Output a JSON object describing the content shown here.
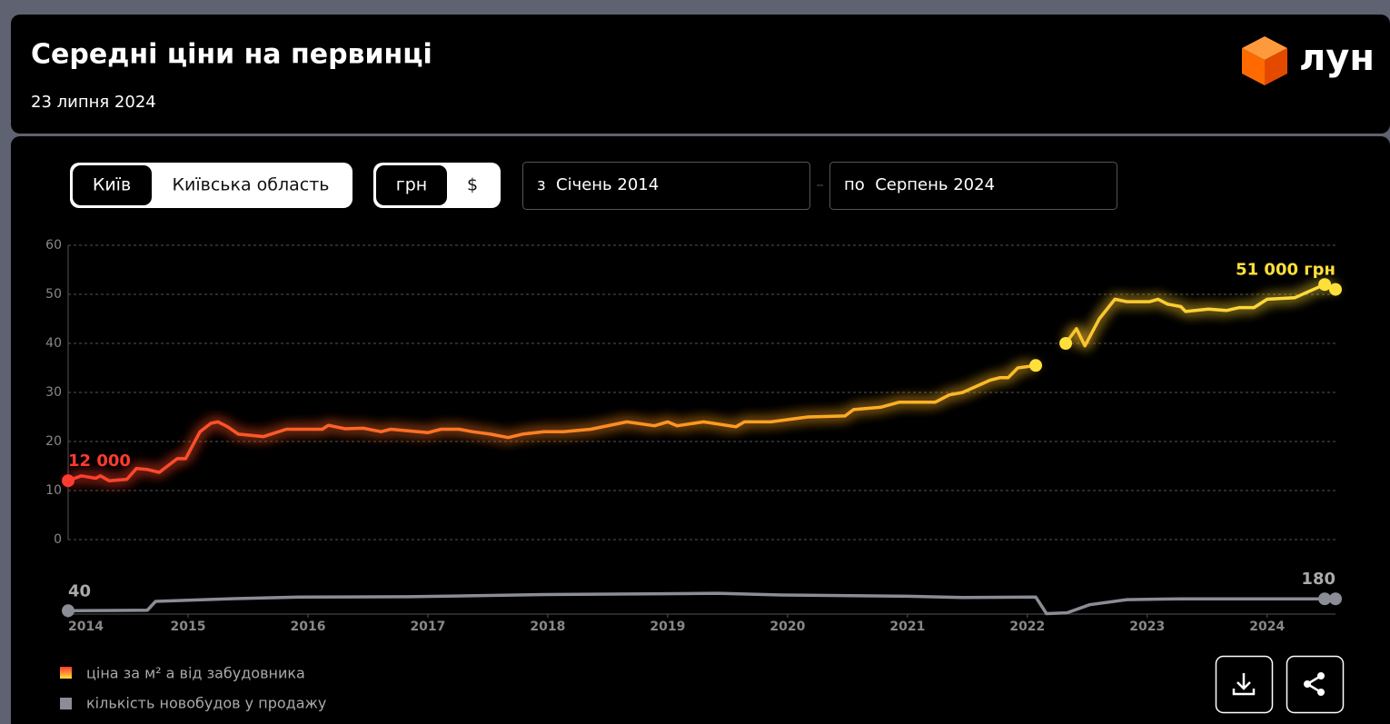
{
  "header": {
    "title": "Середні ціни на первинці",
    "date": "23 липня 2024",
    "logo": "лун"
  },
  "controls": {
    "region": [
      "Київ",
      "Київська область"
    ],
    "currency": [
      "грн",
      "$"
    ],
    "from": "з  Січень 2014",
    "to": "по  Серпень 2024"
  },
  "chart_data": {
    "type": "line",
    "xlim": [
      2014,
      2024.57
    ],
    "xticks": [
      2014,
      2015,
      2016,
      2017,
      2018,
      2019,
      2020,
      2021,
      2022,
      2023,
      2024
    ],
    "ylim": [
      0,
      60
    ],
    "yticks": [
      0,
      10,
      20,
      30,
      40,
      50,
      60
    ],
    "grid": true,
    "y2lim": [
      0,
      600
    ],
    "series": [
      {
        "name": "ціна за м² а від забудовника",
        "gradient": [
          "#ff3b30",
          "#ff9a1f",
          "#ffe03a"
        ],
        "x": [
          2014.0,
          2014.11,
          2014.23,
          2014.27,
          2014.34,
          2014.49,
          2014.57,
          2014.66,
          2014.76,
          2014.91,
          2014.98,
          2015.1,
          2015.19,
          2015.25,
          2015.33,
          2015.42,
          2015.63,
          2015.82,
          2016.12,
          2016.17,
          2016.31,
          2016.46,
          2016.61,
          2016.69,
          2017.0,
          2017.11,
          2017.26,
          2017.37,
          2017.52,
          2017.67,
          2017.79,
          2017.97,
          2018.13,
          2018.36,
          2018.66,
          2018.89,
          2019.0,
          2019.08,
          2019.3,
          2019.57,
          2019.64,
          2019.86,
          2020.17,
          2020.48,
          2020.55,
          2020.78,
          2020.93,
          2021.23,
          2021.35,
          2021.46,
          2021.69,
          2021.77,
          2021.84,
          2021.92,
          2022.07,
          2022.2,
          2022.32,
          2022.41,
          2022.48,
          2022.6,
          2022.73,
          2022.83,
          2023.02,
          2023.09,
          2023.17,
          2023.28,
          2023.32,
          2023.51,
          2023.66,
          2023.77,
          2023.89,
          2024.0,
          2024.23,
          2024.34,
          2024.48,
          2024.57
        ],
        "values": [
          12,
          13,
          12.5,
          13,
          12,
          12.3,
          14.5,
          14.3,
          13.7,
          16.5,
          16.5,
          22,
          23.7,
          24,
          23,
          21.5,
          21,
          22.5,
          22.5,
          23.3,
          22.6,
          22.7,
          22,
          22.5,
          21.8,
          22.5,
          22.5,
          22,
          21.5,
          20.8,
          21.5,
          22,
          22,
          22.5,
          24,
          23.2,
          24,
          23.2,
          24,
          23,
          24,
          24,
          25,
          25.2,
          26.5,
          27,
          28,
          28,
          29.5,
          30,
          32.5,
          33,
          33,
          35,
          35.5,
          null,
          40,
          43,
          39.5,
          45,
          49,
          48.5,
          48.5,
          49,
          48,
          47.5,
          46.5,
          47,
          46.7,
          47.3,
          47.3,
          49,
          49.3,
          50.5,
          52,
          51
        ]
      },
      {
        "name": "кількість новобудов у продажу",
        "color": "#8a8d96",
        "axis": "y2",
        "x": [
          2014.0,
          2014.66,
          2014.73,
          2015.33,
          2015.93,
          2016.84,
          2017.97,
          2018.96,
          2019.42,
          2019.95,
          2021.01,
          2021.46,
          2022.07,
          2022.16,
          2022.33,
          2022.52,
          2022.83,
          2023.28,
          2024.48,
          2024.57
        ],
        "values": [
          40,
          45,
          150,
          180,
          200,
          205,
          230,
          240,
          245,
          225,
          210,
          195,
          200,
          5,
          15,
          110,
          170,
          180,
          180,
          180
        ]
      }
    ],
    "annotations": [
      {
        "text": "12 000",
        "x": 2014,
        "y": 12,
        "series": 0
      },
      {
        "text": "51 000 грн",
        "x": 2024.57,
        "y": 51,
        "series": 0
      },
      {
        "text": "40",
        "x": 2014,
        "y": 40,
        "series": 1
      },
      {
        "text": "180",
        "x": 2024.57,
        "y": 180,
        "series": 1
      }
    ]
  }
}
